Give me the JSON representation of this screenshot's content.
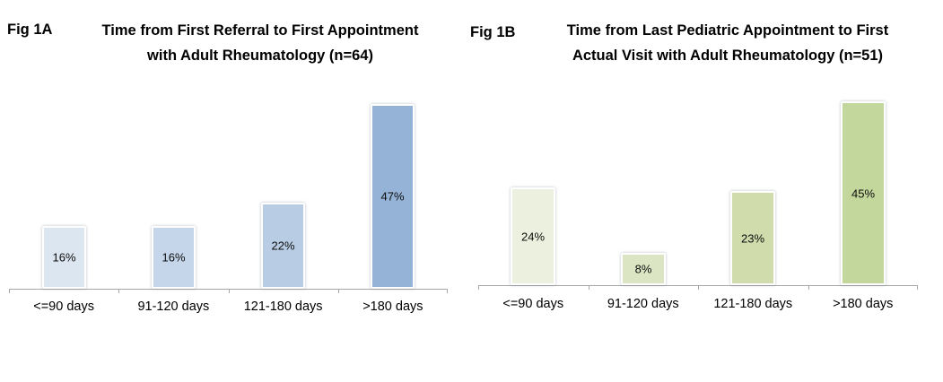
{
  "page": {
    "background": "#ffffff"
  },
  "chart_data": [
    {
      "type": "bar",
      "fig_label": "Fig 1A",
      "title": "Time from First Referral to First Appointment with Adult Rheumatology (n=64)",
      "title_lines": [
        "Time from First Referral to First Appointment",
        "with Adult Rheumatology (n=64)"
      ],
      "categories": [
        "<=90 days",
        "91-120 days",
        "121-180 days",
        ">180 days"
      ],
      "values": [
        16,
        16,
        22,
        47
      ],
      "data_labels": [
        "16%",
        "16%",
        "22%",
        "47%"
      ],
      "bar_colors": [
        "#dce6f1",
        "#c5d5ea",
        "#b8cce4",
        "#95b3d7"
      ],
      "ylim": [
        0,
        50
      ],
      "xlabel": "",
      "ylabel": "",
      "grid": false,
      "legend": false,
      "data_label_position": "center",
      "axis_color": "#a6a6a6"
    },
    {
      "type": "bar",
      "fig_label": "Fig 1B",
      "title": "Time from Last Pediatric Appointment to First Actual Visit with Adult Rheumatology (n=51)",
      "title_lines": [
        "Time from Last Pediatric Appointment to First",
        "Actual Visit with Adult Rheumatology (n=51)"
      ],
      "categories": [
        "<=90 days",
        "91-120 days",
        "121-180 days",
        ">180 days"
      ],
      "values": [
        24,
        8,
        23,
        45
      ],
      "data_labels": [
        "24%",
        "8%",
        "23%",
        "45%"
      ],
      "bar_colors": [
        "#ebf1de",
        "#dbe5c3",
        "#d0dcab",
        "#c3d69b"
      ],
      "ylim": [
        0,
        50
      ],
      "xlabel": "",
      "ylabel": "",
      "grid": false,
      "legend": false,
      "data_label_position": "center",
      "axis_color": "#a6a6a6"
    }
  ]
}
